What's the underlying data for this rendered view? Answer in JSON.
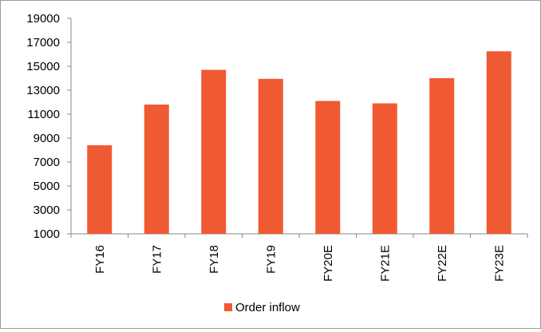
{
  "chart_data": {
    "type": "bar",
    "categories": [
      "FY16",
      "FY17",
      "FY18",
      "FY19",
      "FY20E",
      "FY21E",
      "FY22E",
      "FY23E"
    ],
    "series": [
      {
        "name": "Order inflow",
        "values": [
          8400,
          11800,
          14700,
          13950,
          12100,
          11900,
          14000,
          16250
        ]
      }
    ],
    "ylim": [
      1000,
      19000
    ],
    "yticks": [
      1000,
      3000,
      5000,
      7000,
      9000,
      11000,
      13000,
      15000,
      17000,
      19000
    ],
    "grid": false,
    "legend": "bottom-center",
    "colors": {
      "bar": "#f05a32",
      "axis": "#888888"
    }
  }
}
